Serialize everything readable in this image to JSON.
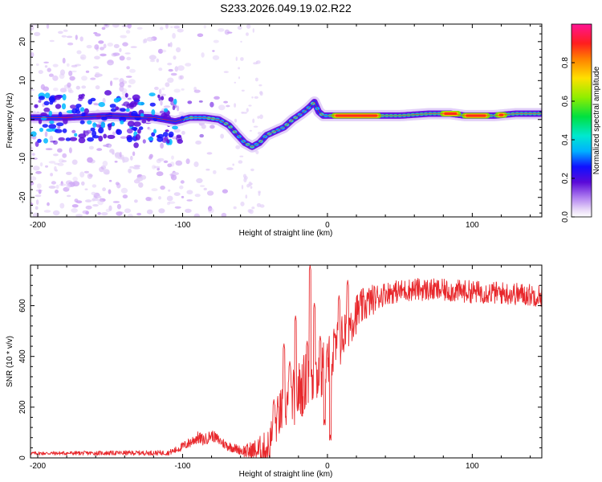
{
  "title": "S233.2026.049.19.02.R22",
  "colors": {
    "snr_line": "#e8282c",
    "axis": "#000000",
    "spectral_trace": "#ff2a1a"
  },
  "chart_data": [
    {
      "type": "heatmap",
      "xlabel": "Height of straight line (km)",
      "ylabel": "Frequency (Hz)",
      "xlim": [
        -205,
        148
      ],
      "ylim": [
        -25,
        24.5
      ],
      "xticks": [
        -200,
        -100,
        0,
        100
      ],
      "xtick_labels": [
        "-200",
        "-100",
        "0",
        "100"
      ],
      "yticks": [
        -20,
        -10,
        0,
        10,
        20
      ],
      "ytick_labels": [
        "-20",
        "-10",
        "0",
        "10",
        "20"
      ],
      "colorbar": {
        "label": "Normalized spectral amplitude",
        "range": [
          0,
          1
        ],
        "ticks": [
          0,
          0.2,
          0.4,
          0.6,
          0.8
        ],
        "tick_labels": [
          "0.0",
          "0.2",
          "0.4",
          "0.6",
          "0.8"
        ]
      },
      "ridge": {
        "height_km": [
          -205,
          -180,
          -150,
          -120,
          -105,
          -95,
          -85,
          -75,
          -68,
          -62,
          -57,
          -52,
          -47,
          -42,
          -36,
          -30,
          -24,
          -18,
          -13,
          -9,
          -6,
          -3,
          0,
          10,
          30,
          50,
          70,
          85,
          95,
          100,
          115,
          130,
          148
        ],
        "frequency_hz": [
          0.5,
          0.5,
          1.0,
          0.5,
          -0.5,
          0.5,
          0.5,
          0,
          -1.5,
          -4,
          -6,
          -7,
          -6,
          -4,
          -3,
          -2,
          0,
          1.5,
          3,
          4.5,
          2,
          1,
          1,
          1,
          1,
          1,
          1.5,
          1.5,
          1,
          1,
          1,
          1.5,
          1.5
        ]
      },
      "peak_segments_km": [
        [
          5,
          35
        ],
        [
          80,
          90
        ],
        [
          95,
          110
        ],
        [
          118,
          122
        ]
      ],
      "noise_region_km": [
        -205,
        -100
      ],
      "noise_frequency_hz": [
        -25,
        24.5
      ]
    },
    {
      "type": "line",
      "xlabel": "Height of straight line (km)",
      "ylabel": "SNR (10 * v/v)",
      "xlim": [
        -205,
        148
      ],
      "ylim": [
        0,
        760
      ],
      "xticks": [
        -200,
        -100,
        0,
        100
      ],
      "xtick_labels": [
        "-200",
        "-100",
        "0",
        "100"
      ],
      "yticks": [
        0,
        200,
        400,
        600
      ],
      "ytick_labels": [
        "0",
        "200",
        "400",
        "600"
      ],
      "trend": {
        "x": [
          -205,
          -110,
          -105,
          -95,
          -90,
          -85,
          -80,
          -75,
          -70,
          -65,
          -60,
          -55,
          -50,
          -45,
          -40,
          -38,
          -35,
          -30,
          -25,
          -20,
          -15,
          -10,
          -5,
          0,
          5,
          10,
          15,
          20,
          25,
          30,
          40,
          60,
          80,
          100,
          120,
          148
        ],
        "y": [
          18,
          20,
          30,
          60,
          80,
          70,
          90,
          70,
          50,
          40,
          30,
          25,
          25,
          30,
          40,
          100,
          150,
          200,
          230,
          260,
          300,
          320,
          330,
          360,
          420,
          470,
          530,
          570,
          600,
          620,
          650,
          665,
          660,
          655,
          650,
          640
        ]
      },
      "spikes": {
        "x": [
          -37,
          -30,
          -26,
          -22,
          -14,
          -12,
          -9,
          -5,
          -2,
          2,
          8,
          14
        ],
        "y": [
          230,
          450,
          380,
          560,
          460,
          760,
          610,
          480,
          150,
          90,
          640,
          700
        ]
      },
      "noise_amplitude": {
        "x": [
          -205,
          -110,
          -90,
          -60,
          -40,
          -20,
          0,
          20,
          40,
          148
        ],
        "y": [
          7,
          10,
          25,
          18,
          80,
          120,
          120,
          80,
          45,
          45
        ]
      }
    }
  ]
}
